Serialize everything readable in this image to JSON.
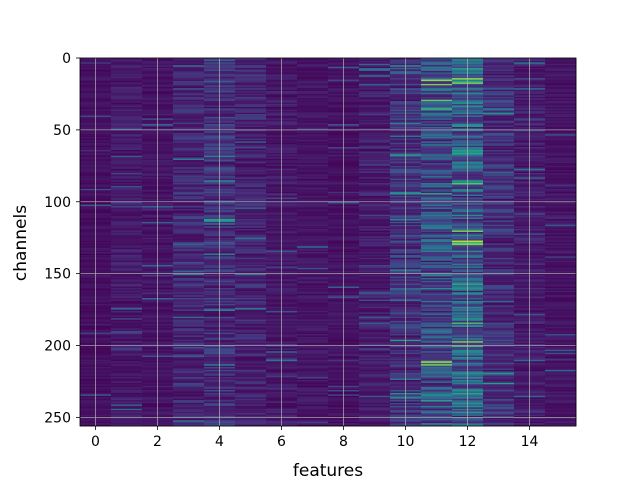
{
  "chart_data": {
    "type": "heatmap",
    "title": "",
    "xlabel": "features",
    "ylabel": "channels",
    "x_range": [
      -0.5,
      15.5
    ],
    "y_range": [
      256,
      0
    ],
    "y_inverted": true,
    "n_features": 16,
    "n_channels": 256,
    "colormap": "viridis",
    "grid": true,
    "x_ticks": [
      0,
      2,
      4,
      6,
      8,
      10,
      12,
      14
    ],
    "y_ticks": [
      0,
      50,
      100,
      150,
      200,
      250
    ],
    "column_mean_intensity": [
      0.06,
      0.1,
      0.08,
      0.16,
      0.2,
      0.15,
      0.1,
      0.08,
      0.07,
      0.12,
      0.22,
      0.34,
      0.42,
      0.2,
      0.12,
      0.08
    ],
    "highlights": [
      {
        "feature": 11,
        "channel": 15,
        "value": 0.85
      },
      {
        "feature": 11,
        "channel": 18,
        "value": 0.8
      },
      {
        "feature": 11,
        "channel": 29,
        "value": 0.75
      },
      {
        "feature": 11,
        "channel": 211,
        "value": 0.9
      },
      {
        "feature": 11,
        "channel": 213,
        "value": 0.8
      },
      {
        "feature": 11,
        "channel": 94,
        "value": 0.6
      },
      {
        "feature": 10,
        "channel": 94,
        "value": 0.5
      },
      {
        "feature": 12,
        "channel": 14,
        "value": 0.85
      },
      {
        "feature": 12,
        "channel": 17,
        "value": 0.8
      },
      {
        "feature": 12,
        "channel": 120,
        "value": 0.8
      },
      {
        "feature": 12,
        "channel": 127,
        "value": 0.9
      },
      {
        "feature": 12,
        "channel": 129,
        "value": 0.85
      },
      {
        "feature": 12,
        "channel": 184,
        "value": 0.7
      },
      {
        "feature": 12,
        "channel": 197,
        "value": 0.8
      },
      {
        "feature": 12,
        "channel": 200,
        "value": 0.7
      },
      {
        "feature": 12,
        "channel": 66,
        "value": 0.6
      },
      {
        "feature": 4,
        "channel": 68,
        "value": 0.45
      },
      {
        "feature": 4,
        "channel": 115,
        "value": 0.4
      },
      {
        "feature": 13,
        "channel": 38,
        "value": 0.5
      }
    ]
  }
}
